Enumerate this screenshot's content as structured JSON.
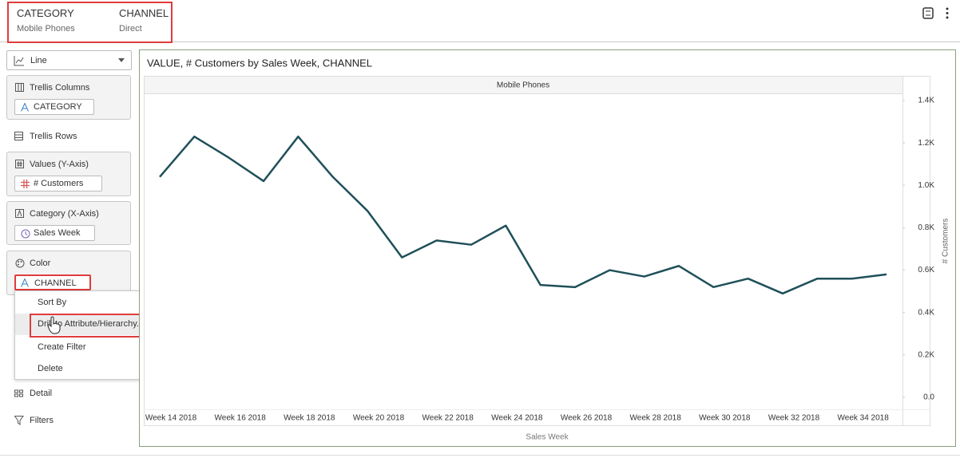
{
  "header": {
    "filters": [
      {
        "label": "CATEGORY",
        "value": "Mobile Phones"
      },
      {
        "label": "CHANNEL",
        "value": "Direct"
      }
    ]
  },
  "sidebar": {
    "chart_type": "Line",
    "sections": [
      {
        "title": "Trellis Columns",
        "item": "CATEGORY"
      },
      {
        "title": "Trellis Rows"
      },
      {
        "title": "Values (Y-Axis)",
        "item": "# Customers"
      },
      {
        "title": "Category (X-Axis)",
        "item": "Sales Week"
      },
      {
        "title": "Color",
        "item": "CHANNEL"
      }
    ],
    "context_menu": [
      "Sort By",
      "Drill to Attribute/Hierarchy...",
      "Create Filter",
      "Delete"
    ],
    "footer": [
      "Detail",
      "Filters"
    ]
  },
  "chart_data": {
    "type": "line",
    "title": "VALUE, # Customers by Sales Week, CHANNEL",
    "facet": "Mobile Phones",
    "x_label": "Sales Week",
    "y_label": "# Customers",
    "y_axis_side": "right",
    "grid": false,
    "color": "#1f5059",
    "categories": [
      "Week 14 2018",
      null,
      "Week 16 2018",
      null,
      "Week 18 2018",
      null,
      "Week 20 2018",
      null,
      "Week 22 2018",
      null,
      "Week 24 2018",
      null,
      "Week 26 2018",
      null,
      "Week 28 2018",
      null,
      "Week 30 2018",
      null,
      "Week 32 2018",
      null,
      "Week 34 2018",
      null
    ],
    "values": [
      1040,
      1230,
      1130,
      1020,
      1230,
      1040,
      880,
      660,
      740,
      720,
      810,
      530,
      520,
      600,
      570,
      620,
      520,
      560,
      490,
      560,
      560,
      580
    ],
    "ylim": [
      0,
      1400
    ],
    "yticks": [
      {
        "value": 0,
        "label": "0.0"
      },
      {
        "value": 200,
        "label": "0.2K"
      },
      {
        "value": 400,
        "label": "0.4K"
      },
      {
        "value": 600,
        "label": "0.6K"
      },
      {
        "value": 800,
        "label": "0.8K"
      },
      {
        "value": 1000,
        "label": "1.0K"
      },
      {
        "value": 1200,
        "label": "1.2K"
      },
      {
        "value": 1400,
        "label": "1.4K"
      }
    ]
  }
}
